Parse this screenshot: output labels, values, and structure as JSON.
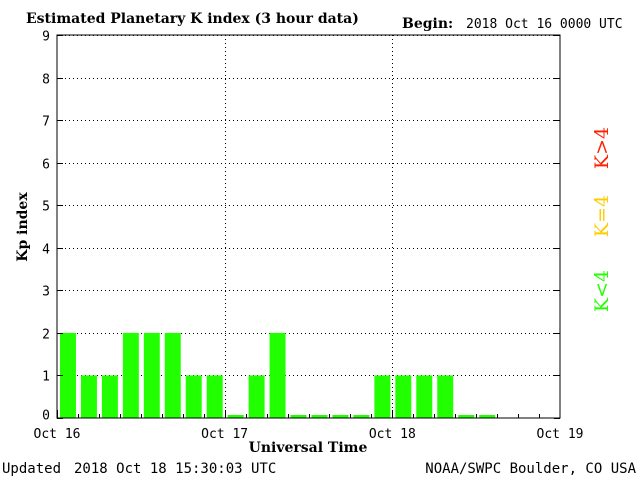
{
  "header": {
    "title": "Estimated Planetary K index (3 hour data)",
    "begin_label": "Begin:",
    "begin_value": "2018 Oct 16 0000 UTC"
  },
  "footer": {
    "updated_label": "Updated",
    "updated_value": "2018 Oct 18 15:30:03 UTC",
    "credit": "NOAA/SWPC Boulder, CO USA"
  },
  "legend": {
    "high": "K>4",
    "equal": "K=4",
    "low": "K<4"
  },
  "colors": {
    "low": "#22ff00",
    "equal": "#ffcc00",
    "high": "#ff2200",
    "grid": "#000000"
  },
  "chart_data": {
    "type": "bar",
    "title": "Estimated Planetary K index (3 hour data)",
    "xlabel": "Universal Time",
    "ylabel": "Kp index",
    "ylim": [
      0,
      9
    ],
    "yticks": [
      "0",
      "1",
      "2",
      "3",
      "4",
      "5",
      "6",
      "7",
      "8",
      "9"
    ],
    "xtick_labels": [
      "Oct 16",
      "Oct 17",
      "Oct 18",
      "Oct 19"
    ],
    "grid": "dotted",
    "slots_per_day": 8,
    "values": [
      2,
      1,
      1,
      2,
      2,
      2,
      1,
      1,
      0,
      1,
      2,
      0,
      0,
      0,
      0,
      1,
      1,
      1,
      1,
      0,
      0
    ]
  }
}
